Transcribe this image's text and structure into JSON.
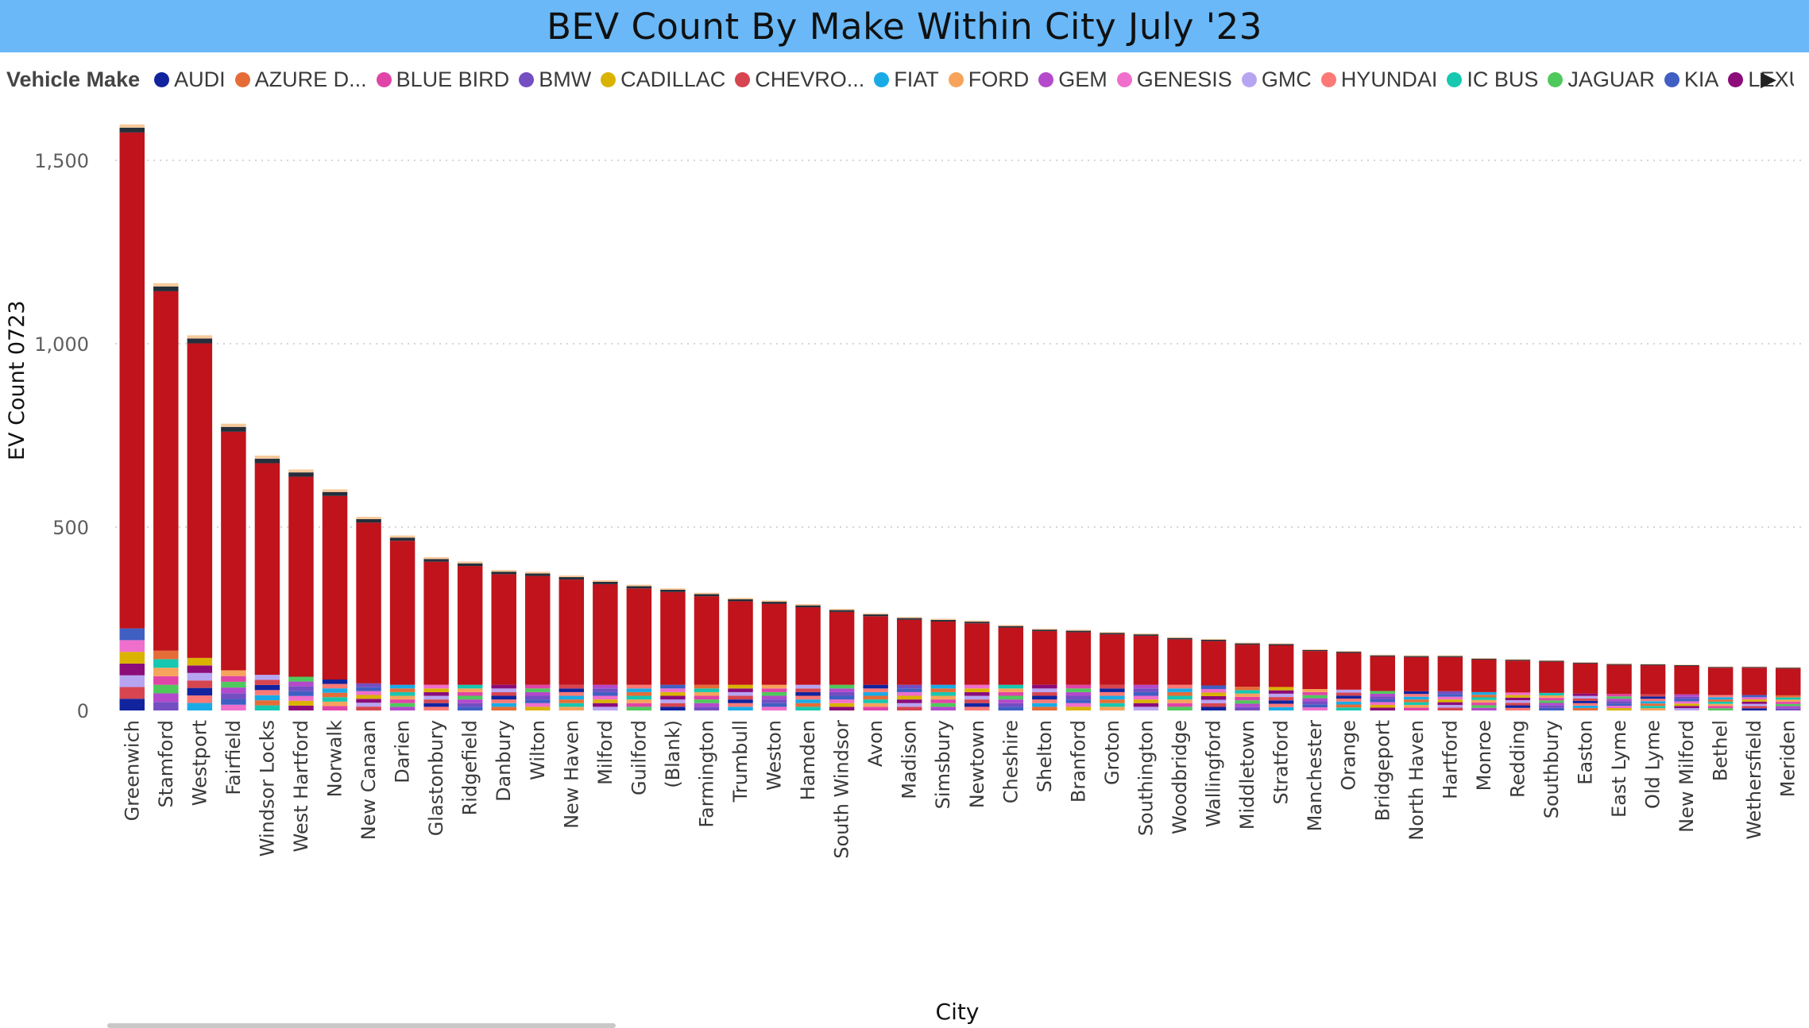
{
  "title": "BEV Count By Make Within City July '23",
  "legend": {
    "title": "Vehicle Make",
    "items": [
      {
        "label": "AUDI",
        "color": "#12239e"
      },
      {
        "label": "AZURE D...",
        "color": "#e66c37"
      },
      {
        "label": "BLUE BIRD",
        "color": "#e044a7"
      },
      {
        "label": "BMW",
        "color": "#744ec2"
      },
      {
        "label": "CADILLAC",
        "color": "#d9b300"
      },
      {
        "label": "CHEVRO...",
        "color": "#d64550"
      },
      {
        "label": "FIAT",
        "color": "#1aabe6"
      },
      {
        "label": "FORD",
        "color": "#f7a35c"
      },
      {
        "label": "GEM",
        "color": "#b449cb"
      },
      {
        "label": "GENESIS",
        "color": "#f06ecc"
      },
      {
        "label": "GMC",
        "color": "#b7a5f2"
      },
      {
        "label": "HYUNDAI",
        "color": "#fd7976"
      },
      {
        "label": "IC BUS",
        "color": "#16c8b0"
      },
      {
        "label": "JAGUAR",
        "color": "#4fc95c"
      },
      {
        "label": "KIA",
        "color": "#3f5fc3"
      },
      {
        "label": "LEXUS",
        "color": "#8c0c7a"
      }
    ],
    "more_icon": "chevron-right-icon"
  },
  "axes": {
    "ylabel": "EV Count 0723",
    "xlabel": "City",
    "yticks": [
      "0",
      "500",
      "1,000",
      "1,500"
    ]
  },
  "chart_data": {
    "type": "bar",
    "stacked": true,
    "title": "BEV Count By Make Within City July '23",
    "xlabel": "City",
    "ylabel": "EV Count 0723",
    "ylim": [
      0,
      1600
    ],
    "grid": true,
    "legend_position": "top",
    "categories": [
      "Greenwich",
      "Stamford",
      "Westport",
      "Fairfield",
      "Windsor Locks",
      "West Hartford",
      "Norwalk",
      "New Canaan",
      "Darien",
      "Glastonbury",
      "Ridgefield",
      "Danbury",
      "Wilton",
      "New Haven",
      "Milford",
      "Guilford",
      "(Blank)",
      "Farmington",
      "Trumbull",
      "Weston",
      "Hamden",
      "South Windsor",
      "Avon",
      "Madison",
      "Simsbury",
      "Newtown",
      "Cheshire",
      "Shelton",
      "Branford",
      "Groton",
      "Southington",
      "Woodbridge",
      "Wallingford",
      "Middletown",
      "Stratford",
      "Manchester",
      "Orange",
      "Bridgeport",
      "North Haven",
      "Hartford",
      "Monroe",
      "Redding",
      "Southbury",
      "Easton",
      "East Lyme",
      "Old Lyme",
      "New Milford",
      "Bethel",
      "Wethersfield",
      "Meriden"
    ],
    "totals": [
      1598,
      1165,
      1023,
      782,
      695,
      657,
      603,
      528,
      477,
      418,
      406,
      383,
      378,
      368,
      355,
      343,
      333,
      321,
      307,
      300,
      290,
      277,
      265,
      255,
      250,
      245,
      233,
      223,
      220,
      214,
      210,
      200,
      195,
      185,
      183,
      167,
      162,
      152,
      150,
      150,
      143,
      140,
      137,
      132,
      128,
      127,
      125,
      120,
      120,
      118
    ],
    "tesla_color": "#c0131b",
    "segments_note": "Other makes stacked beneath the dominant series; top caps in dark/peach tones"
  }
}
